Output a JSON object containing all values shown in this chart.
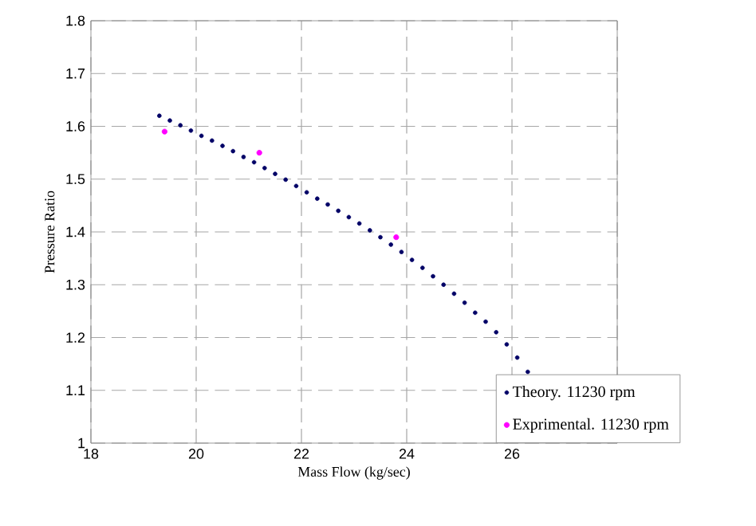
{
  "chart_data": {
    "type": "scatter",
    "xlabel": "Mass Flow (kg/sec)",
    "ylabel": "Pressure Ratio",
    "xlim": [
      18,
      28
    ],
    "xticks": [
      18,
      20,
      22,
      24,
      26,
      {
        "value": 28,
        "label": null
      }
    ],
    "ylim": [
      1,
      1.8
    ],
    "yticks": [
      1,
      1.1,
      1.2,
      1.3,
      1.4,
      1.5,
      1.6,
      1.7,
      1.8
    ],
    "grid": true,
    "legend": "bottom right",
    "marker": "circle",
    "series": [
      {
        "name": "Theory. 11230 rpm",
        "color": "#000066",
        "x": [
          19.3,
          19.5,
          19.7,
          19.9,
          20.1,
          20.3,
          20.5,
          20.7,
          20.9,
          21.1,
          21.3,
          21.5,
          21.7,
          21.9,
          22.1,
          22.3,
          22.5,
          22.7,
          22.9,
          23.1,
          23.3,
          23.5,
          23.7,
          23.9,
          24.1,
          24.3,
          24.5,
          24.7,
          24.9,
          25.1,
          25.3,
          25.5,
          25.7,
          25.9,
          26.1,
          26.3
        ],
        "values": [
          1.62,
          1.611,
          1.602,
          1.592,
          1.582,
          1.573,
          1.563,
          1.553,
          1.542,
          1.532,
          1.521,
          1.51,
          1.499,
          1.487,
          1.475,
          1.463,
          1.452,
          1.44,
          1.428,
          1.416,
          1.403,
          1.39,
          1.376,
          1.362,
          1.347,
          1.332,
          1.316,
          1.3,
          1.283,
          1.266,
          1.247,
          1.23,
          1.21,
          1.187,
          1.162,
          1.135
        ]
      },
      {
        "name": "Exprimental. 11230 rpm",
        "color": "#ff00ff",
        "x": [
          19.4,
          21.2,
          23.8
        ],
        "values": [
          1.59,
          1.55,
          1.39
        ]
      }
    ]
  }
}
